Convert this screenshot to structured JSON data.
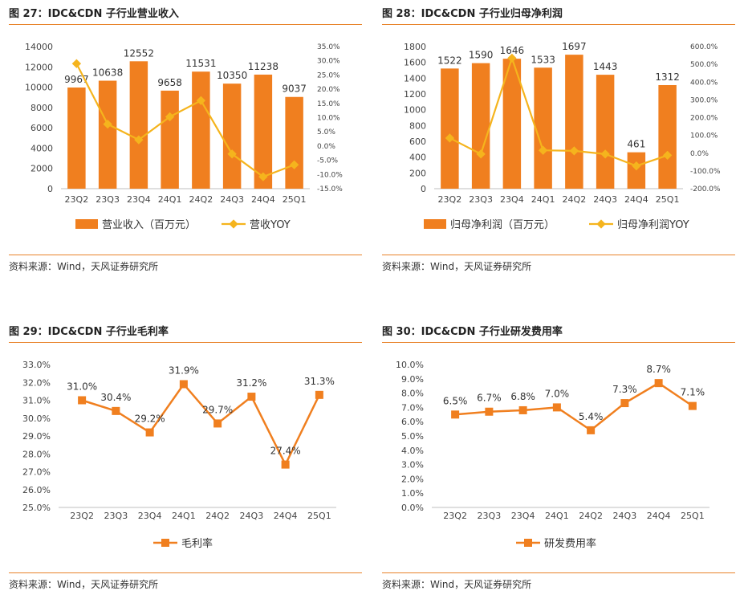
{
  "source_note": "资料来源：Wind，天风证券研究所",
  "colors": {
    "accent": "#f07f1f",
    "line_yellow": "#f5b41d",
    "frame": "#e8832a"
  },
  "chart_data": [
    {
      "figure_title": "图 27：IDC&CDN 子行业营业收入",
      "type": "bar",
      "categories": [
        "23Q2",
        "23Q3",
        "23Q4",
        "24Q1",
        "24Q2",
        "24Q3",
        "24Q4",
        "25Q1"
      ],
      "series": [
        {
          "name": "营业收入（百万元）",
          "type": "bar",
          "axis": "left",
          "values": [
            9967,
            10638,
            12552,
            9658,
            11531,
            10350,
            11238,
            9037
          ]
        },
        {
          "name": "营收YOY",
          "type": "line",
          "axis": "right",
          "values": [
            0.29,
            0.077,
            0.022,
            0.103,
            0.16,
            -0.028,
            -0.108,
            -0.066
          ]
        }
      ],
      "y_left": {
        "ticks": [
          "0",
          "2000",
          "4000",
          "6000",
          "8000",
          "10000",
          "12000",
          "14000"
        ]
      },
      "y_right": {
        "ticks": [
          "-15.0%",
          "-10.0%",
          "-5.0%",
          "0.0%",
          "5.0%",
          "10.0%",
          "15.0%",
          "20.0%",
          "25.0%",
          "30.0%",
          "35.0%"
        ]
      },
      "ylim_left": [
        0,
        14000
      ],
      "ylim_right": [
        -0.15,
        0.35
      ],
      "legend": "bottom",
      "grid": false
    },
    {
      "figure_title": "图 28：IDC&CDN 子行业归母净利润",
      "type": "bar",
      "categories": [
        "23Q2",
        "23Q3",
        "23Q4",
        "24Q1",
        "24Q2",
        "24Q3",
        "24Q4",
        "25Q1"
      ],
      "series": [
        {
          "name": "归母净利润（百万元）",
          "type": "bar",
          "axis": "left",
          "values": [
            1522,
            1590,
            1646,
            1533,
            1697,
            1443,
            461,
            1312
          ]
        },
        {
          "name": "归母净利润YOY",
          "type": "line",
          "axis": "right",
          "values": [
            0.85,
            -0.05,
            5.35,
            0.16,
            0.13,
            -0.05,
            -0.72,
            -0.12
          ]
        }
      ],
      "y_left": {
        "ticks": [
          "0",
          "200",
          "400",
          "600",
          "800",
          "1000",
          "1200",
          "1400",
          "1600",
          "1800"
        ]
      },
      "y_right": {
        "ticks": [
          "-200.0%",
          "-100.0%",
          "0.0%",
          "100.0%",
          "200.0%",
          "300.0%",
          "400.0%",
          "500.0%",
          "600.0%"
        ]
      },
      "ylim_left": [
        0,
        1800
      ],
      "ylim_right": [
        -2,
        6
      ],
      "legend": "bottom",
      "grid": false
    },
    {
      "figure_title": "图 29：IDC&CDN 子行业毛利率",
      "type": "line",
      "categories": [
        "23Q2",
        "23Q3",
        "23Q4",
        "24Q1",
        "24Q2",
        "24Q3",
        "24Q4",
        "25Q1"
      ],
      "series": [
        {
          "name": "毛利率",
          "type": "line",
          "axis": "left",
          "values": [
            0.31,
            0.304,
            0.292,
            0.319,
            0.297,
            0.312,
            0.274,
            0.313
          ],
          "labels": [
            "31.0%",
            "30.4%",
            "29.2%",
            "31.9%",
            "29.7%",
            "31.2%",
            "27.4%",
            "31.3%"
          ]
        }
      ],
      "y_left": {
        "ticks": [
          "25.0%",
          "26.0%",
          "27.0%",
          "28.0%",
          "29.0%",
          "30.0%",
          "31.0%",
          "32.0%",
          "33.0%"
        ]
      },
      "ylim_left": [
        0.25,
        0.33
      ],
      "legend": "bottom",
      "grid": false
    },
    {
      "figure_title": "图 30：IDC&CDN 子行业研发费用率",
      "type": "line",
      "categories": [
        "23Q2",
        "23Q3",
        "23Q4",
        "24Q1",
        "24Q2",
        "24Q3",
        "24Q4",
        "25Q1"
      ],
      "series": [
        {
          "name": "研发费用率",
          "type": "line",
          "axis": "left",
          "values": [
            0.065,
            0.067,
            0.068,
            0.07,
            0.054,
            0.073,
            0.087,
            0.071
          ],
          "labels": [
            "6.5%",
            "6.7%",
            "6.8%",
            "7.0%",
            "5.4%",
            "7.3%",
            "8.7%",
            "7.1%"
          ]
        }
      ],
      "y_left": {
        "ticks": [
          "0.0%",
          "1.0%",
          "2.0%",
          "3.0%",
          "4.0%",
          "5.0%",
          "6.0%",
          "7.0%",
          "8.0%",
          "9.0%",
          "10.0%"
        ]
      },
      "ylim_left": [
        0,
        0.1
      ],
      "legend": "bottom",
      "grid": false
    }
  ]
}
